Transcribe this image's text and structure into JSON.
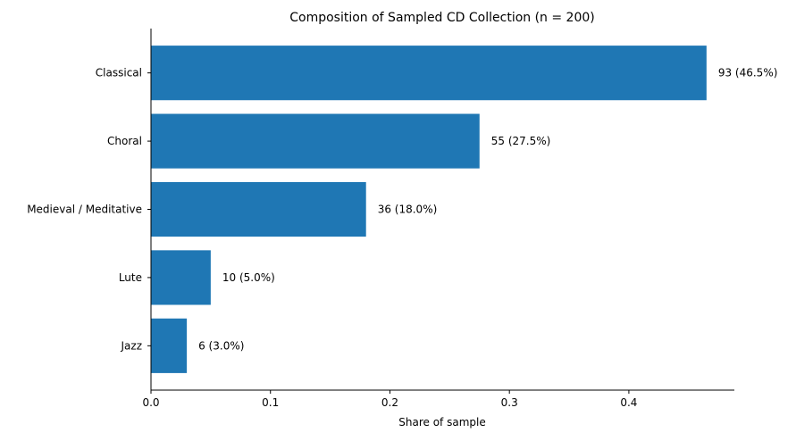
{
  "chart_data": {
    "type": "bar",
    "orientation": "horizontal",
    "title": "Composition of Sampled CD Collection (n = 200)",
    "xlabel": "Share of sample",
    "ylabel": "",
    "categories": [
      "Classical",
      "Choral",
      "Medieval / Meditative",
      "Lute",
      "Jazz"
    ],
    "counts": [
      93,
      55,
      36,
      10,
      6
    ],
    "values": [
      0.465,
      0.275,
      0.18,
      0.05,
      0.03
    ],
    "data_labels": [
      "93 (46.5%)",
      "55 (27.5%)",
      "36 (18.0%)",
      "10 (5.0%)",
      "6 (3.0%)"
    ],
    "xticks": [
      0.0,
      0.1,
      0.2,
      0.3,
      0.4
    ],
    "xtick_labels": [
      "0.0",
      "0.1",
      "0.2",
      "0.3",
      "0.4"
    ],
    "xlim": [
      0,
      0.4883
    ],
    "grid": false,
    "bar_color": "#1f77b4"
  }
}
